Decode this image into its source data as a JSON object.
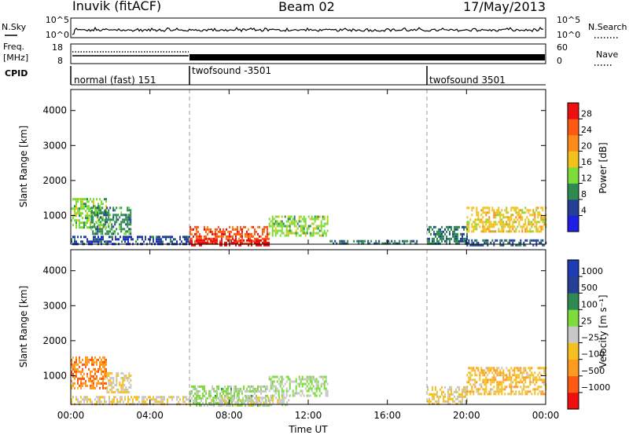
{
  "header": {
    "station": "Inuvik (fitACF)",
    "beam": "Beam 02",
    "date": "17/May/2013"
  },
  "panels": {
    "nsky": {
      "left_label": "N.Sky",
      "left_ticks": [
        "10^5",
        "10^0"
      ],
      "right_ticks": [
        "10^5",
        "10^0"
      ],
      "right_label": "N.Search"
    },
    "freq": {
      "left_label_1": "Freq.",
      "left_label_2": "[MHz]",
      "left_ticks": [
        "18",
        "8"
      ],
      "right_ticks": [
        "60",
        "0"
      ],
      "right_label": "Nave"
    },
    "cpid": {
      "label": "CPID",
      "segments": [
        "normal (fast) 151",
        "twofsound -3501",
        "twofsound 3501"
      ]
    }
  },
  "x_axis": {
    "label": "Time UT",
    "ticks": [
      "00:00",
      "04:00",
      "08:00",
      "12:00",
      "16:00",
      "20:00",
      "00:00"
    ]
  },
  "chart_data": [
    {
      "type": "heatmap",
      "title": "Power",
      "ylabel": "Slant Range [km]",
      "yticks": [
        "1000",
        "2000",
        "3000",
        "4000"
      ],
      "colorbar_label": "Power [dB]",
      "colorbar_ticks": [
        "28",
        "24",
        "20",
        "16",
        "12",
        "8",
        "4"
      ],
      "colors": [
        "#1e1ee6",
        "#233f96",
        "#2e8a50",
        "#7ddc3c",
        "#f0c21a",
        "#ff8a1c",
        "#ff5a14",
        "#ee1010"
      ],
      "x_range_hours": [
        0,
        24
      ],
      "y_range_km": [
        180,
        4600
      ],
      "vmin": 0,
      "vmax": 32,
      "regions": [
        {
          "t": [
            0.0,
            1.8
          ],
          "r": [
            650,
            1500
          ],
          "value": 14
        },
        {
          "t": [
            1.0,
            3.0
          ],
          "r": [
            500,
            1250
          ],
          "value": 10
        },
        {
          "t": [
            0.0,
            6.0
          ],
          "r": [
            180,
            420
          ],
          "value": 6
        },
        {
          "t": [
            6.0,
            10.0
          ],
          "r": [
            180,
            700
          ],
          "value": 26
        },
        {
          "t": [
            6.0,
            10.0
          ],
          "r": [
            180,
            320
          ],
          "value": 31
        },
        {
          "t": [
            10.0,
            13.0
          ],
          "r": [
            450,
            1000
          ],
          "value": 14
        },
        {
          "t": [
            13.0,
            17.5
          ],
          "r": [
            180,
            300
          ],
          "value": 8
        },
        {
          "t": [
            18.0,
            20.0
          ],
          "r": [
            180,
            700
          ],
          "value": 9
        },
        {
          "t": [
            20.0,
            24.0
          ],
          "r": [
            550,
            1250
          ],
          "value": 18
        },
        {
          "t": [
            20.0,
            24.0
          ],
          "r": [
            180,
            320
          ],
          "value": 7
        }
      ]
    },
    {
      "type": "heatmap",
      "title": "Velocity",
      "ylabel": "Slant Range [km]",
      "yticks": [
        "1000",
        "2000",
        "3000",
        "4000"
      ],
      "colorbar_label": "Velocity [m s⁻¹]",
      "colorbar_ticks": [
        "1000",
        "500",
        "100",
        "25",
        "−25",
        "−100",
        "−500",
        "−1000"
      ],
      "colors": [
        "#ee1010",
        "#ff5a14",
        "#ff9a20",
        "#f5c020",
        "#c8c8c8",
        "#7ddc3c",
        "#2e8a50",
        "#233f96",
        "#1e3cb4"
      ],
      "x_range_hours": [
        0,
        24
      ],
      "y_range_km": [
        180,
        4600
      ],
      "vmin": -1200,
      "vmax": 1200,
      "regions": [
        {
          "t": [
            0.0,
            1.8
          ],
          "r": [
            650,
            1550
          ],
          "value": -600
        },
        {
          "t": [
            1.8,
            3.0
          ],
          "r": [
            550,
            1100
          ],
          "value": -150
        },
        {
          "t": [
            0.0,
            6.0
          ],
          "r": [
            180,
            420
          ],
          "value": -120
        },
        {
          "t": [
            6.0,
            10.0
          ],
          "r": [
            180,
            720
          ],
          "value": 200
        },
        {
          "t": [
            7.0,
            11.0
          ],
          "r": [
            180,
            400
          ],
          "value": 0
        },
        {
          "t": [
            10.0,
            13.0
          ],
          "r": [
            450,
            1000
          ],
          "value": 150
        },
        {
          "t": [
            18.0,
            20.0
          ],
          "r": [
            180,
            700
          ],
          "value": -150
        },
        {
          "t": [
            20.0,
            24.0
          ],
          "r": [
            500,
            1250
          ],
          "value": -300
        }
      ]
    }
  ]
}
